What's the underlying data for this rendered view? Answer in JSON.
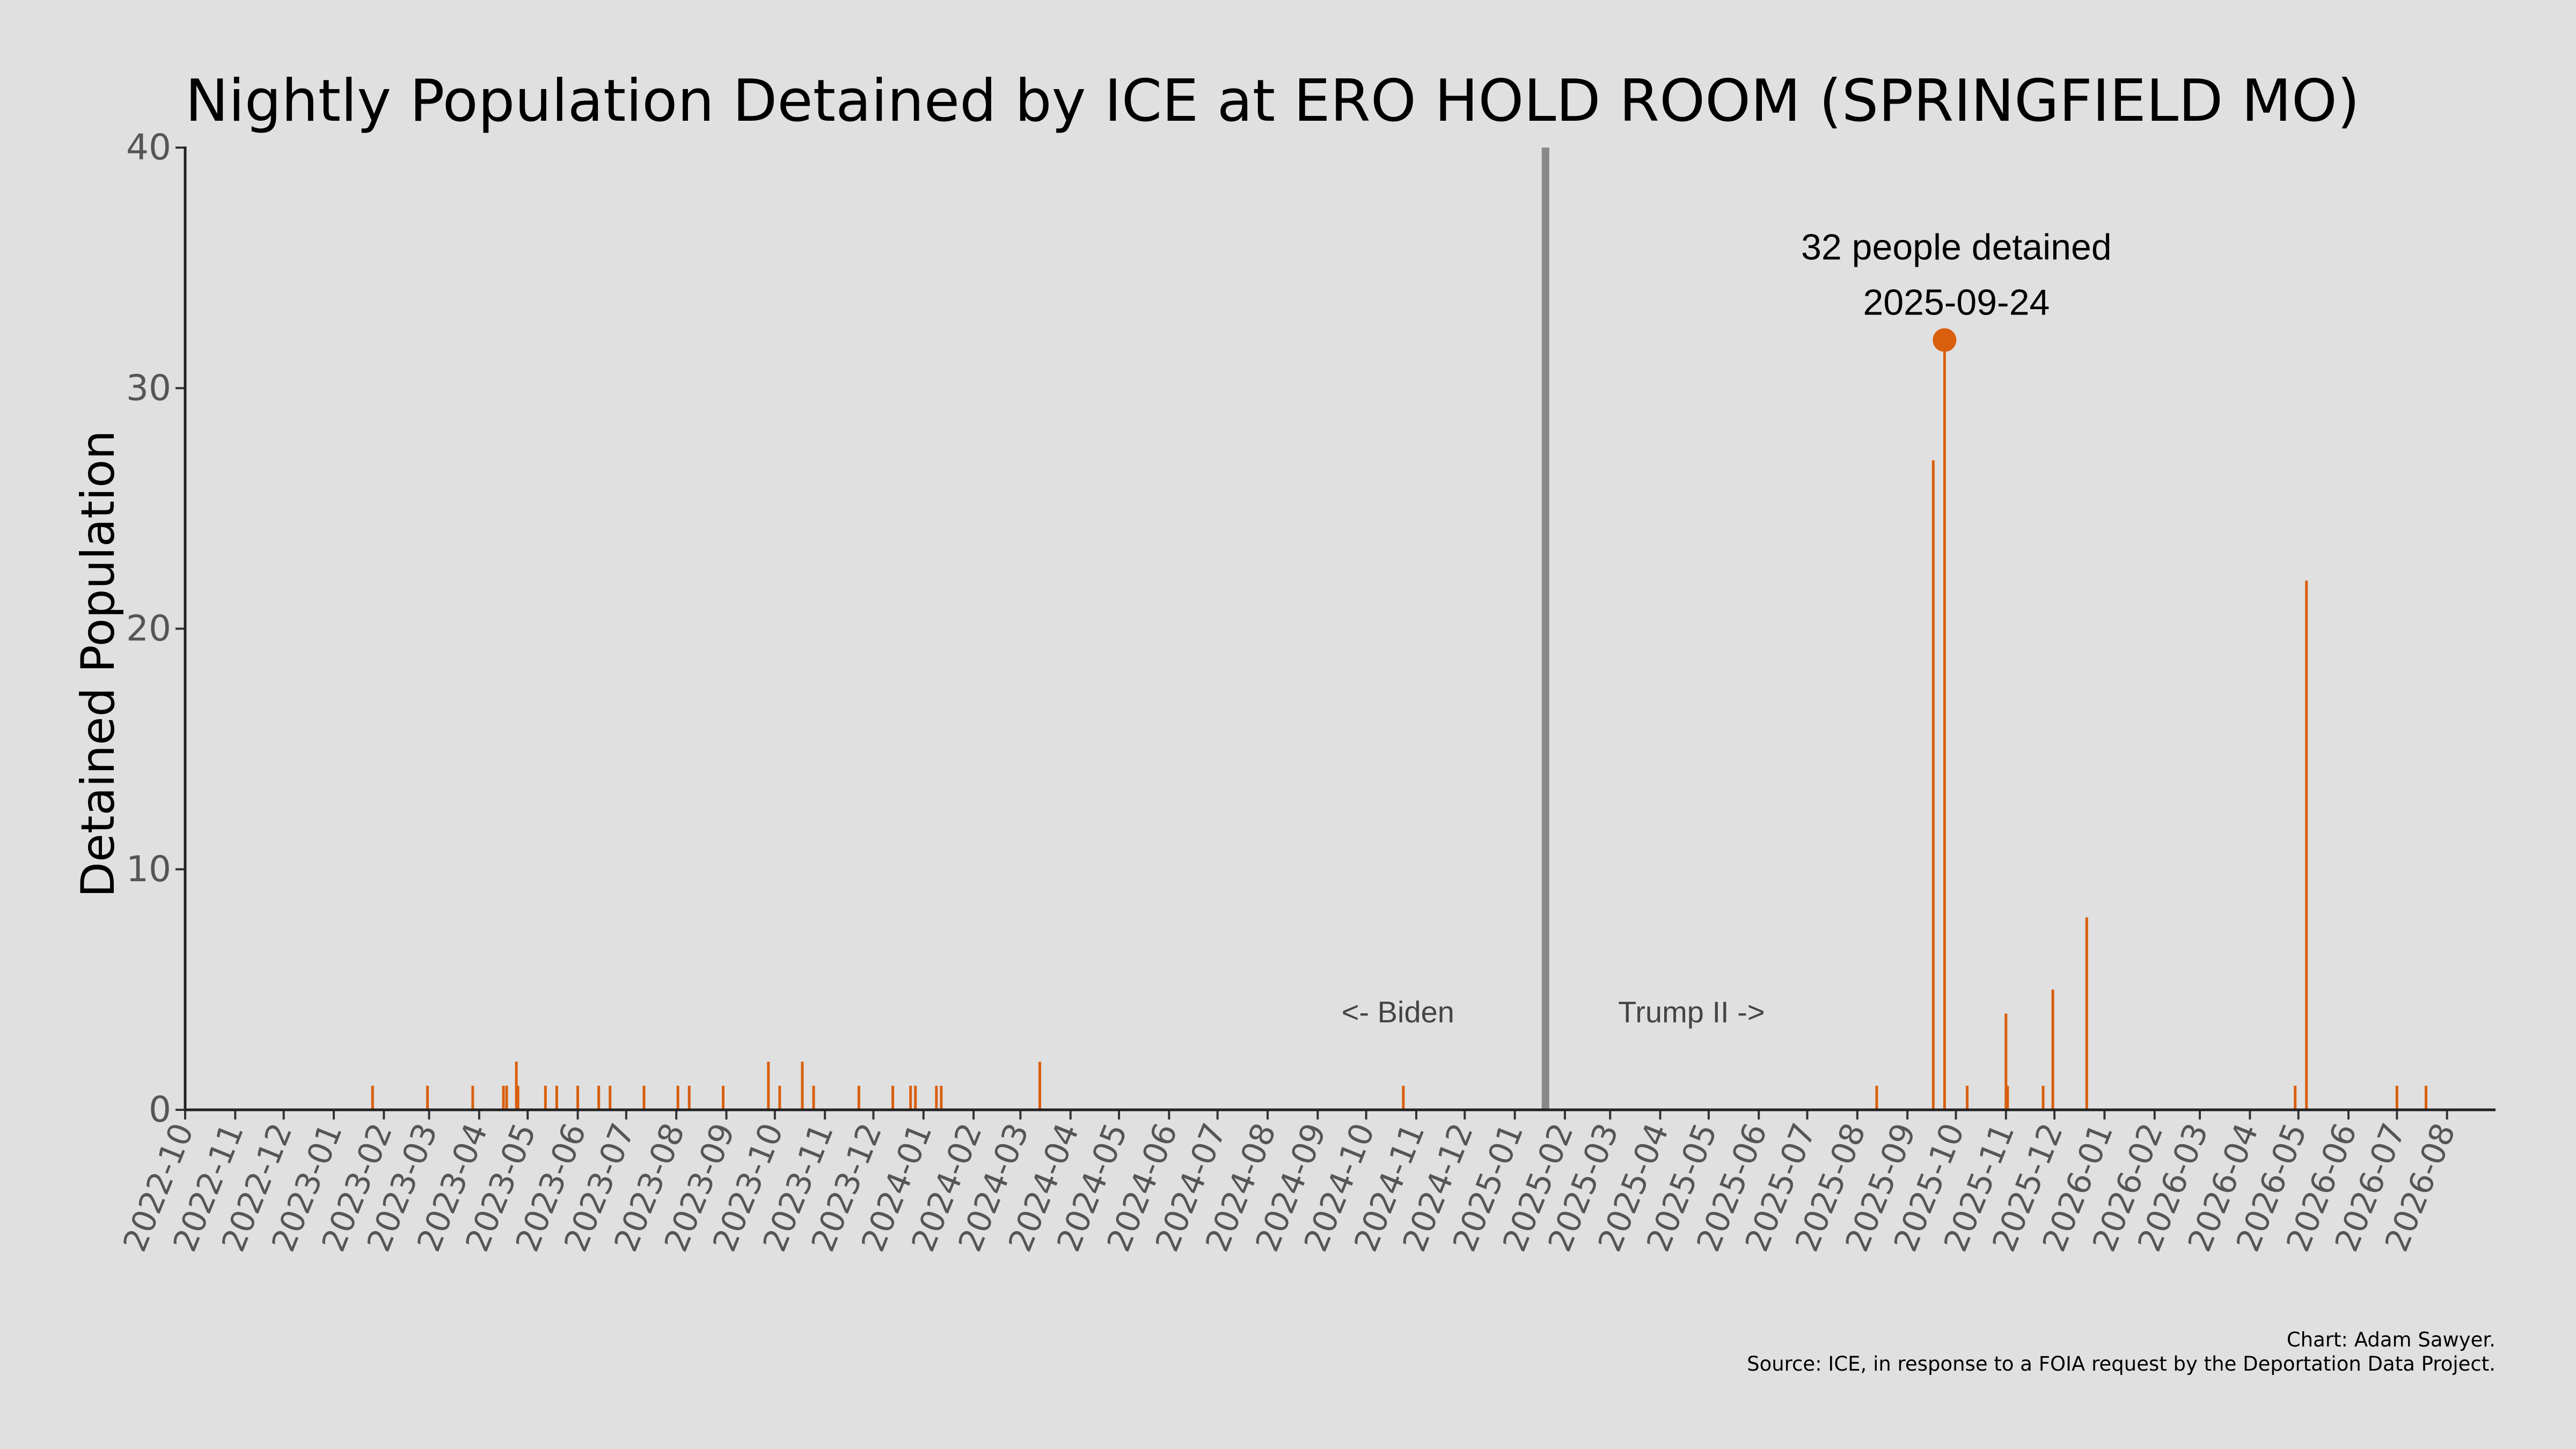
{
  "chart_data": {
    "type": "bar",
    "title": "Nightly Population Detained by ICE at ERO HOLD ROOM (SPRINGFIELD MO)",
    "xlabel": "",
    "ylabel": "Detained Population",
    "ylim": [
      0,
      40
    ],
    "yticks": [
      "0",
      "10",
      "20",
      "30",
      "40"
    ],
    "xlim": [
      "2022-10-01",
      "2026-08-31"
    ],
    "xticks": [
      "2022-10",
      "2022-11",
      "2022-12",
      "2023-01",
      "2023-02",
      "2023-03",
      "2023-04",
      "2023-05",
      "2023-06",
      "2023-07",
      "2023-08",
      "2023-09",
      "2023-10",
      "2023-11",
      "2023-12",
      "2024-01",
      "2024-02",
      "2024-03",
      "2024-04",
      "2024-05",
      "2024-06",
      "2024-07",
      "2024-08",
      "2024-09",
      "2024-10",
      "2024-11",
      "2024-12",
      "2025-01",
      "2025-02",
      "2025-03",
      "2025-04",
      "2025-05",
      "2025-06",
      "2025-07",
      "2025-08",
      "2025-09",
      "2025-10",
      "2025-11",
      "2025-12",
      "2026-01",
      "2026-02",
      "2026-03",
      "2026-04",
      "2026-05",
      "2026-06",
      "2026-07",
      "2026-08"
    ],
    "grid": false,
    "bar_color": "#d95f0e",
    "points": [
      {
        "x": "2023-01-25",
        "y": 1
      },
      {
        "x": "2023-02-28",
        "y": 1
      },
      {
        "x": "2023-03-28",
        "y": 1
      },
      {
        "x": "2023-04-16",
        "y": 1
      },
      {
        "x": "2023-04-18",
        "y": 1
      },
      {
        "x": "2023-04-24",
        "y": 2
      },
      {
        "x": "2023-04-25",
        "y": 1
      },
      {
        "x": "2023-05-12",
        "y": 1
      },
      {
        "x": "2023-05-19",
        "y": 1
      },
      {
        "x": "2023-06-01",
        "y": 1
      },
      {
        "x": "2023-06-14",
        "y": 1
      },
      {
        "x": "2023-06-21",
        "y": 1
      },
      {
        "x": "2023-07-12",
        "y": 1
      },
      {
        "x": "2023-08-02",
        "y": 1
      },
      {
        "x": "2023-08-09",
        "y": 1
      },
      {
        "x": "2023-08-30",
        "y": 1
      },
      {
        "x": "2023-09-27",
        "y": 2
      },
      {
        "x": "2023-10-04",
        "y": 1
      },
      {
        "x": "2023-10-18",
        "y": 2
      },
      {
        "x": "2023-10-25",
        "y": 1
      },
      {
        "x": "2023-11-22",
        "y": 1
      },
      {
        "x": "2023-12-13",
        "y": 1
      },
      {
        "x": "2023-12-24",
        "y": 1
      },
      {
        "x": "2023-12-27",
        "y": 1
      },
      {
        "x": "2024-01-09",
        "y": 1
      },
      {
        "x": "2024-01-12",
        "y": 1
      },
      {
        "x": "2024-03-13",
        "y": 2
      },
      {
        "x": "2024-10-24",
        "y": 1
      },
      {
        "x": "2025-08-13",
        "y": 1
      },
      {
        "x": "2025-09-17",
        "y": 27
      },
      {
        "x": "2025-09-24",
        "y": 32
      },
      {
        "x": "2025-10-08",
        "y": 1
      },
      {
        "x": "2025-11-01",
        "y": 4
      },
      {
        "x": "2025-11-02",
        "y": 1
      },
      {
        "x": "2025-11-24",
        "y": 1
      },
      {
        "x": "2025-11-30",
        "y": 5
      },
      {
        "x": "2025-12-21",
        "y": 8
      },
      {
        "x": "2026-04-29",
        "y": 1
      },
      {
        "x": "2026-05-06",
        "y": 22
      },
      {
        "x": "2026-07-01",
        "y": 1
      },
      {
        "x": "2026-07-19",
        "y": 1
      }
    ],
    "divider": {
      "x": "2025-01-20",
      "color": "#888888"
    },
    "era_labels": {
      "left": "<- Biden",
      "right": "Trump II ->"
    },
    "highlight": {
      "x": "2025-09-24",
      "y": 32,
      "line1": "32 people detained",
      "line2": "2025-09-24"
    },
    "credits": {
      "line1": "Chart: Adam Sawyer.",
      "line2": "Source: ICE, in response to a FOIA request by the Deportation Data Project."
    }
  }
}
